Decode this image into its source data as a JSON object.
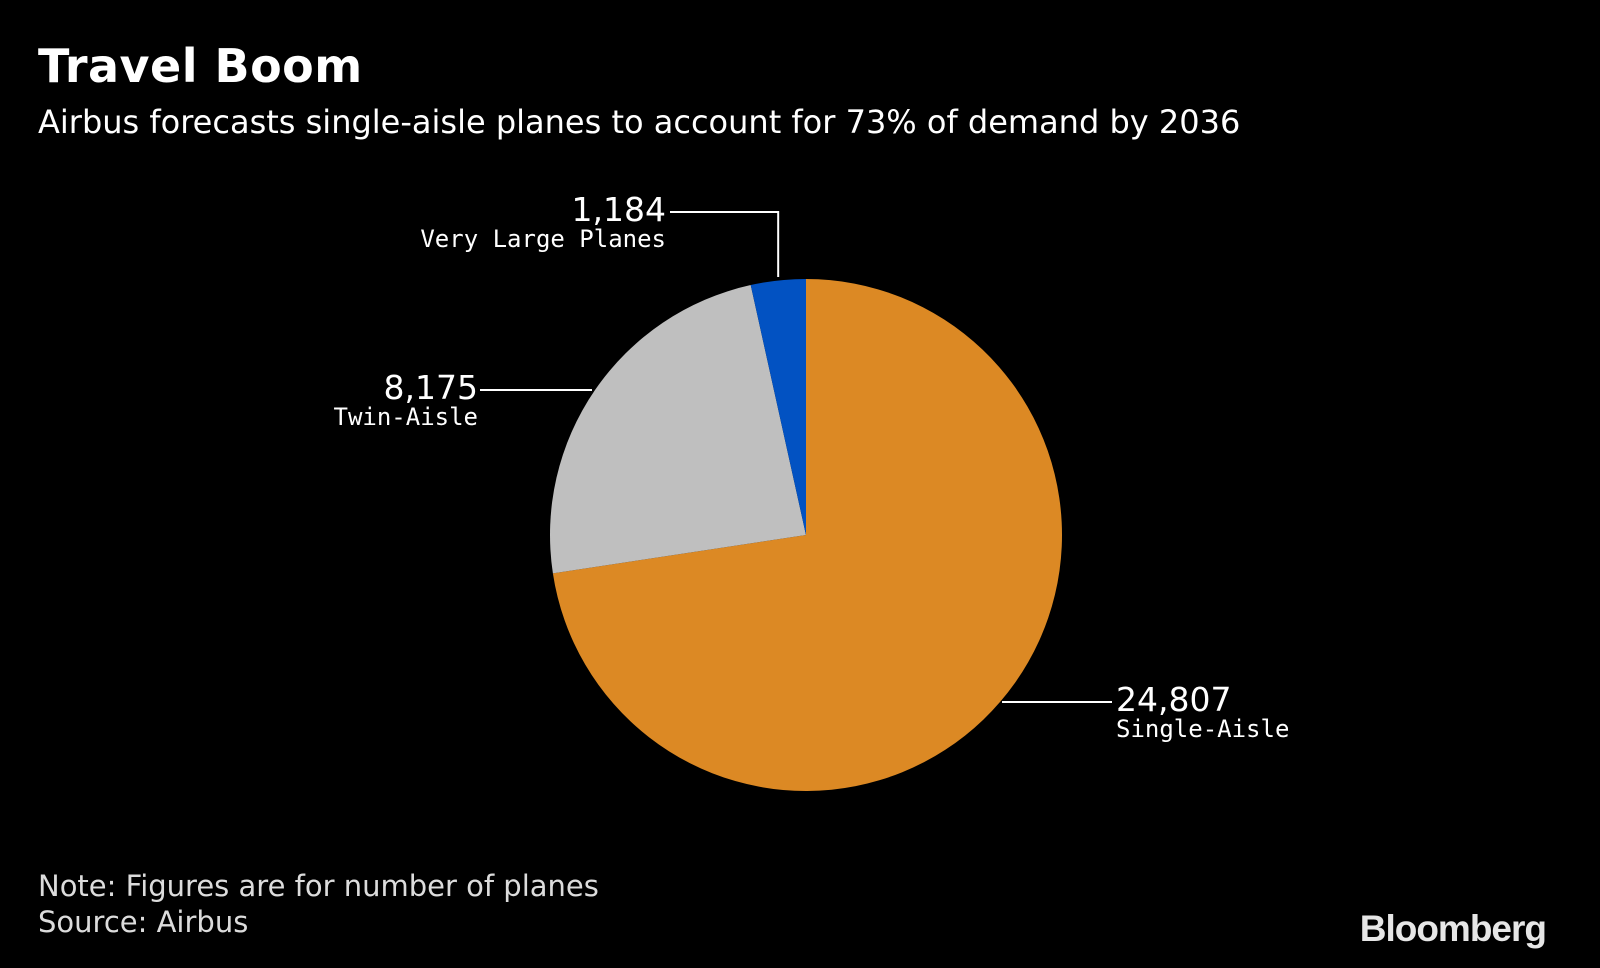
{
  "header": {
    "title": "Travel Boom",
    "subtitle": "Airbus forecasts single-aisle planes to account for 73% of demand by 2036"
  },
  "footer": {
    "note": "Note: Figures are for number of planes",
    "source": "Source: Airbus",
    "brand": "Bloomberg"
  },
  "chart_data": {
    "type": "pie",
    "title": "Travel Boom",
    "subtitle": "Airbus forecasts single-aisle planes to account for 73% of demand by 2036",
    "start": "12 o'clock, clockwise",
    "slices": [
      {
        "key": "single-aisle",
        "label": "Single-Aisle",
        "value": 24807,
        "value_label": "24,807",
        "color": "#dc8924"
      },
      {
        "key": "twin-aisle",
        "label": "Twin-Aisle",
        "value": 8175,
        "value_label": "8,175",
        "color": "#bfbfbf"
      },
      {
        "key": "very-large",
        "label": "Very Large Planes",
        "value": 1184,
        "value_label": "1,184",
        "color": "#0252c2"
      }
    ]
  }
}
